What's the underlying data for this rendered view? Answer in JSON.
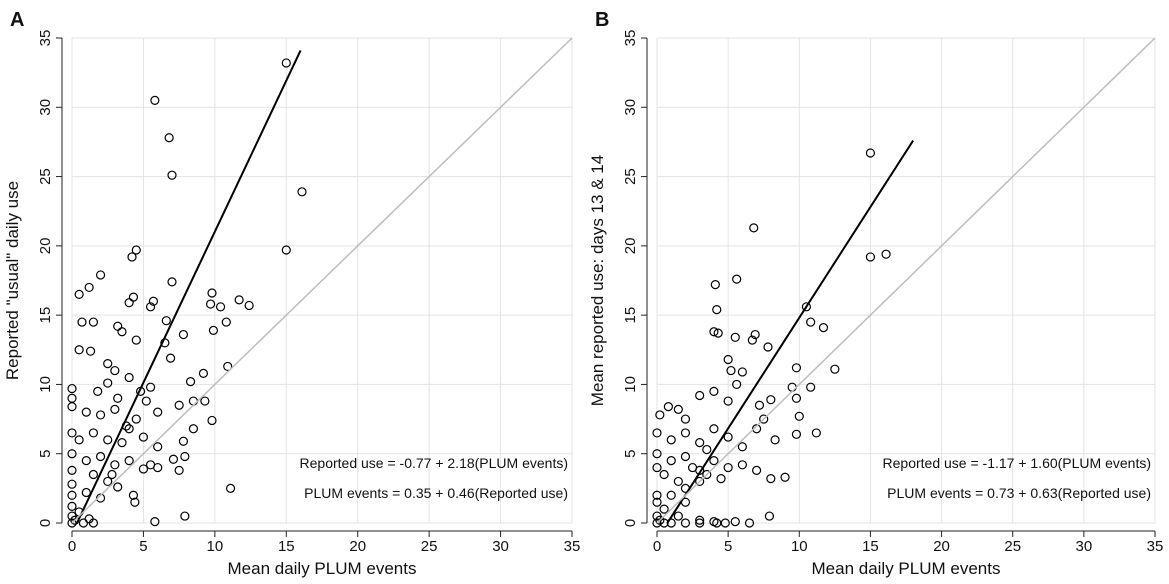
{
  "chart_data": [
    {
      "type": "scatter",
      "panel": "A",
      "xlabel": "Mean daily PLUM events",
      "ylabel": "Reported \"usual\" daily use",
      "xlim": [
        0,
        35
      ],
      "ylim": [
        0,
        35
      ],
      "xticks": [
        0,
        5,
        10,
        15,
        20,
        25,
        30,
        35
      ],
      "yticks": [
        0,
        5,
        10,
        15,
        20,
        25,
        30,
        35
      ],
      "grid": true,
      "annotations": [
        "Reported use = -0.77 + 2.18(PLUM events)",
        "PLUM events = 0.35 + 0.46(Reported use)"
      ],
      "series": [
        {
          "type": "scatter",
          "color": "#000000",
          "x": [
            15,
            5.8,
            6.8,
            7,
            16.1,
            15,
            4.5,
            4.2,
            2,
            1.2,
            0.5,
            4.3,
            4,
            5.7,
            5.5,
            7,
            9.8,
            9.7,
            11.7,
            12.4,
            10.4,
            10.8,
            9.9,
            6.6,
            0.7,
            1.5,
            3.2,
            3.5,
            0.5,
            1.3,
            4.5,
            6.5,
            7.8,
            2.5,
            3,
            6.9,
            10.9,
            0,
            0,
            0,
            1.8,
            2.5,
            4,
            5.5,
            8.3,
            9.2,
            1,
            2,
            3,
            4.5,
            5.2,
            6,
            7.5,
            8.5,
            9.3,
            9.8,
            0,
            0.5,
            1.5,
            2.5,
            3.5,
            4,
            5,
            6,
            7.8,
            8.5,
            0,
            1,
            2,
            3,
            4,
            5,
            5.5,
            6,
            7.1,
            7.5,
            7.9,
            0,
            1.5,
            2.5,
            3.2,
            4.3,
            4.4,
            0,
            0,
            1,
            2,
            0,
            0.5,
            0,
            0.2,
            1.2,
            1.5,
            0.8,
            0,
            5.8,
            7.9,
            11.1,
            2.8,
            3.8,
            3.2,
            4.8
          ],
          "y": [
            33.2,
            30.5,
            27.8,
            25.1,
            23.9,
            19.7,
            19.7,
            19.2,
            17.9,
            17,
            16.5,
            16.3,
            15.9,
            16,
            15.6,
            17.4,
            16.6,
            15.8,
            16.1,
            15.7,
            15.6,
            14.5,
            13.9,
            14.6,
            14.5,
            14.5,
            14.2,
            13.8,
            12.5,
            12.4,
            13.2,
            13,
            13.6,
            11.5,
            11,
            11.9,
            11.3,
            9.7,
            9,
            8.4,
            9.5,
            10.1,
            10.5,
            9.8,
            10.2,
            10.8,
            8,
            7.8,
            8.2,
            7.5,
            8.8,
            8,
            8.5,
            8.8,
            8.8,
            7.4,
            6.5,
            6,
            6.5,
            6,
            5.8,
            6.8,
            6.2,
            5.5,
            5.9,
            6.8,
            5,
            4.5,
            4.8,
            4.2,
            4.5,
            3.9,
            4.2,
            4,
            4.6,
            3.8,
            4.8,
            3.8,
            3.5,
            3,
            2.6,
            2,
            1.5,
            2.8,
            2,
            2.2,
            1.8,
            1.2,
            0.8,
            0.5,
            0.2,
            0.3,
            0,
            0,
            0,
            0.1,
            0.5,
            2.5,
            3.5,
            7,
            9,
            9.5
          ]
        },
        {
          "type": "line",
          "color": "#000000",
          "x": [
            0.35,
            16
          ],
          "y": [
            0,
            34.1
          ]
        },
        {
          "type": "line",
          "color": "#bdbdbd",
          "x": [
            0,
            35
          ],
          "y": [
            0,
            35
          ]
        }
      ]
    },
    {
      "type": "scatter",
      "panel": "B",
      "xlabel": "Mean daily PLUM events",
      "ylabel": "Mean reported use: days 13 & 14",
      "xlim": [
        0,
        35
      ],
      "ylim": [
        0,
        35
      ],
      "xticks": [
        0,
        5,
        10,
        15,
        20,
        25,
        30,
        35
      ],
      "yticks": [
        0,
        5,
        10,
        15,
        20,
        25,
        30,
        35
      ],
      "grid": true,
      "annotations": [
        "Reported use = -1.17 + 1.60(PLUM events)",
        "PLUM events = 0.73 + 0.63(Reported use)"
      ],
      "series": [
        {
          "type": "scatter",
          "color": "#000000",
          "x": [
            15,
            6.8,
            15,
            16.1,
            5.6,
            4.1,
            4.2,
            10.5,
            10.8,
            11.7,
            4,
            4.3,
            5.5,
            6.7,
            6.9,
            12.5,
            9.8,
            5,
            5.2,
            6,
            5.6,
            0.2,
            0.8,
            1.5,
            2,
            3,
            4,
            5,
            7.2,
            8,
            9.5,
            9.8,
            10.8,
            10,
            9.8,
            11.2,
            7.8,
            0,
            1,
            2,
            3,
            3.5,
            4,
            5,
            6,
            7,
            7.5,
            8.3,
            0,
            1,
            2,
            2.5,
            3,
            3.5,
            4,
            4.5,
            5,
            6,
            7,
            8,
            9,
            0,
            0.5,
            1.5,
            2,
            3,
            1,
            2,
            0,
            0,
            0.5,
            0,
            0.2,
            1,
            2,
            3,
            4,
            4.2,
            5.5,
            7.9,
            0.5,
            0,
            4.8,
            6.5,
            3,
            1.5
          ],
          "y": [
            26.7,
            21.3,
            19.2,
            19.4,
            17.6,
            17.2,
            15.4,
            15.6,
            14.5,
            14.1,
            13.8,
            13.7,
            13.4,
            13.2,
            13.6,
            11.1,
            11.2,
            11.8,
            11,
            10.9,
            10,
            7.8,
            8.4,
            8.2,
            7.5,
            9.2,
            9.5,
            8.8,
            8.5,
            8.9,
            9.8,
            9,
            9.8,
            7.7,
            6.4,
            6.5,
            12.7,
            6.5,
            6,
            6.5,
            5.8,
            5.3,
            6.8,
            6.2,
            5.5,
            6.8,
            7.5,
            6,
            5,
            4.5,
            4.8,
            4,
            3.8,
            3.5,
            4.5,
            3.2,
            4,
            4.2,
            3.8,
            3.2,
            3.3,
            4,
            3.5,
            3,
            2.5,
            3,
            2,
            1.5,
            2,
            1.5,
            1,
            0.5,
            0.2,
            0,
            0,
            0,
            0.1,
            0,
            0.1,
            0.5,
            0,
            0,
            0,
            0,
            0.2,
            0.5
          ]
        },
        {
          "type": "line",
          "color": "#000000",
          "x": [
            0.73,
            18
          ],
          "y": [
            0,
            27.6
          ]
        },
        {
          "type": "line",
          "color": "#bdbdbd",
          "x": [
            0,
            35
          ],
          "y": [
            0,
            35
          ]
        }
      ]
    }
  ]
}
